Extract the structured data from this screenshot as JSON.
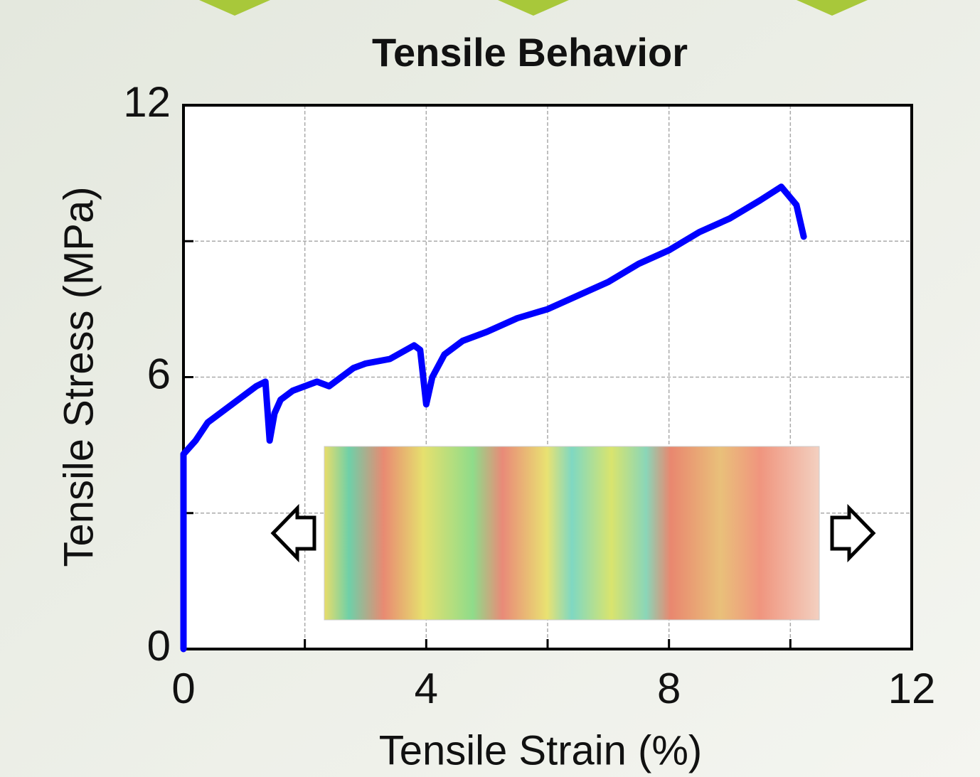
{
  "chart_data": {
    "type": "line",
    "title": "Tensile Behavior",
    "x_label": "Tensile Strain (%)",
    "y_label": "Tensile Stress (MPa)",
    "xlim": [
      0,
      12
    ],
    "ylim": [
      0,
      12
    ],
    "xticks": [
      0,
      4,
      8,
      12
    ],
    "yticks": [
      0,
      6,
      12
    ],
    "x_minor_grid": [
      2,
      6,
      10
    ],
    "y_minor_grid": [
      3,
      9
    ],
    "grid": true,
    "series": [
      {
        "color": "#0000ff",
        "x": [
          0,
          0,
          0.2,
          0.4,
          0.6,
          0.8,
          1.0,
          1.2,
          1.35,
          1.42,
          1.5,
          1.6,
          1.8,
          2.0,
          2.2,
          2.4,
          2.6,
          2.8,
          3.0,
          3.4,
          3.8,
          3.9,
          4.0,
          4.1,
          4.3,
          4.6,
          5.0,
          5.5,
          6.0,
          6.5,
          7.0,
          7.5,
          8.0,
          8.5,
          9.0,
          9.5,
          9.85,
          10.1,
          10.22
        ],
        "values": [
          0,
          4.3,
          4.6,
          5.0,
          5.2,
          5.4,
          5.6,
          5.8,
          5.9,
          4.6,
          5.2,
          5.5,
          5.7,
          5.8,
          5.9,
          5.8,
          6.0,
          6.2,
          6.3,
          6.4,
          6.7,
          6.6,
          5.4,
          6.0,
          6.5,
          6.8,
          7.0,
          7.3,
          7.5,
          7.8,
          8.1,
          8.5,
          8.8,
          9.2,
          9.5,
          9.9,
          10.2,
          9.8,
          9.1
        ]
      }
    ]
  }
}
